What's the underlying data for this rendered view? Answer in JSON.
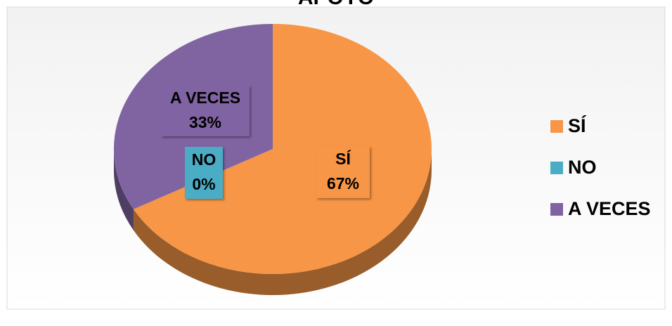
{
  "chart_data": {
    "type": "pie",
    "title": "APOYO",
    "categories": [
      "SÍ",
      "NO",
      "A VECES"
    ],
    "values": [
      67,
      0,
      33
    ],
    "value_labels": [
      "67%",
      "0%",
      "33%"
    ],
    "colors": [
      "#f79646",
      "#4bacc6",
      "#8064a2"
    ],
    "legend": "right"
  }
}
